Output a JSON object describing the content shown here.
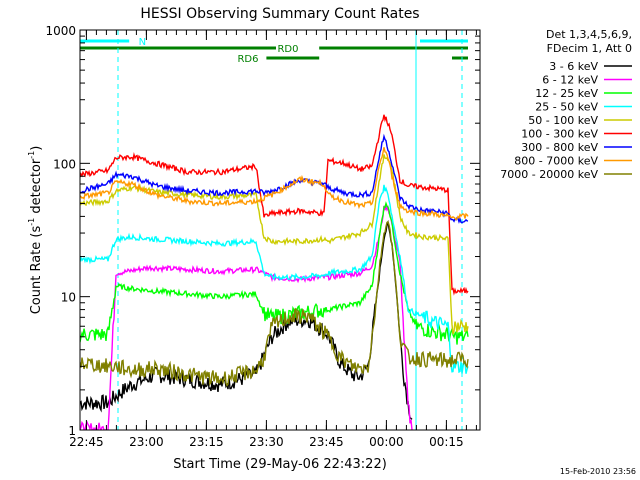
{
  "chart_data": {
    "type": "line",
    "title": "HESSI Observing Summary Count Rates",
    "xlabel": "Start Time (29-May-06 22:43:22)",
    "ylabel_main": "Count Rate (s",
    "ylabel_sup1": "-1",
    "ylabel_mid": " detector",
    "ylabel_sup2": "-1",
    "ylabel_end": ")",
    "footer": "15-Feb-2010 23:56",
    "yscale": "log",
    "ylim": [
      1,
      1000
    ],
    "xlim_min": [
      0,
      100
    ],
    "y_ticks": [
      "1",
      "10",
      "100",
      "1000"
    ],
    "x_ticks": [
      {
        "label": "22:45",
        "t": 1.6
      },
      {
        "label": "23:00",
        "t": 16.6
      },
      {
        "label": "23:15",
        "t": 31.6
      },
      {
        "label": "23:30",
        "t": 46.6
      },
      {
        "label": "23:45",
        "t": 61.6
      },
      {
        "label": "00:00",
        "t": 76.6
      },
      {
        "label": "00:15",
        "t": 91.6
      }
    ],
    "legend_header": [
      "Det 1,3,4,5,6,9,",
      "FDecim 1, Att 0"
    ],
    "legend_placement": "right",
    "series": [
      {
        "name": "3 - 6 keV",
        "color": "#000000",
        "t": [
          0,
          7,
          9,
          13,
          19,
          27,
          35,
          40,
          44,
          48,
          52,
          57,
          62,
          65,
          68,
          70,
          72,
          73,
          74,
          75,
          76,
          77,
          78,
          79,
          80,
          81,
          82,
          83
        ],
        "v": [
          1.6,
          1.6,
          1.8,
          2.2,
          2.6,
          2.4,
          2.2,
          2.4,
          2.6,
          5.0,
          6.5,
          6.8,
          5.2,
          3.2,
          2.6,
          2.5,
          3.0,
          5.0,
          9.0,
          16,
          28,
          35,
          25,
          12,
          5.0,
          2.5,
          1.6,
          1.2
        ]
      },
      {
        "name": "6 - 12 keV",
        "color": "#ff00ff",
        "t": [
          0,
          7,
          9,
          12,
          17,
          27,
          35,
          44,
          46,
          48,
          55,
          61,
          62,
          66,
          70,
          73,
          75,
          76,
          77,
          78,
          80,
          81,
          82,
          83
        ],
        "v": [
          1.0,
          1.0,
          15,
          15.5,
          16.5,
          16,
          15.5,
          16,
          15,
          14,
          13.5,
          14,
          14,
          14.5,
          15,
          17,
          30,
          46,
          47,
          35,
          18,
          5.0,
          1.5,
          1.0
        ]
      },
      {
        "name": "12 - 25 keV",
        "color": "#00ff00",
        "t": [
          0,
          7,
          9,
          13,
          19,
          27,
          35,
          44,
          46,
          48,
          55,
          61,
          62,
          66,
          70,
          73,
          75,
          76,
          77,
          78,
          80,
          82,
          84,
          88,
          92,
          93,
          95,
          97
        ],
        "v": [
          5.2,
          5.2,
          12,
          11.5,
          11,
          10.5,
          10,
          10.5,
          7.5,
          7.0,
          7.5,
          8.0,
          8.0,
          8.5,
          9,
          12,
          30,
          48,
          49,
          35,
          15,
          8,
          6,
          5.5,
          5.2,
          5.0,
          5.0,
          5.0
        ]
      },
      {
        "name": "25 - 50 keV",
        "color": "#00ffff",
        "t": [
          0,
          7,
          9,
          13,
          19,
          27,
          35,
          44,
          46,
          48,
          55,
          61,
          62,
          66,
          70,
          73,
          75,
          76,
          77,
          78,
          80,
          82,
          86,
          88,
          92,
          93,
          95,
          97
        ],
        "v": [
          19,
          19,
          27,
          28,
          27,
          26,
          25,
          26,
          15,
          14,
          14,
          14.5,
          15,
          15.5,
          16,
          20,
          55,
          66,
          60,
          40,
          20,
          8,
          7,
          6.5,
          6,
          3.0,
          3.0,
          3.0
        ]
      },
      {
        "name": "50 - 100 keV",
        "color": "#cccc00",
        "t": [
          0,
          7,
          9,
          13,
          19,
          27,
          35,
          44,
          46,
          48,
          55,
          61,
          62,
          66,
          70,
          73,
          75,
          76,
          77,
          78,
          80,
          82,
          86,
          88,
          92,
          93,
          95,
          97
        ],
        "v": [
          50,
          52,
          62,
          66,
          61,
          58,
          56,
          58,
          28,
          26,
          26,
          27,
          26,
          28,
          30,
          35,
          80,
          112,
          110,
          90,
          40,
          30,
          28,
          28,
          27,
          6.0,
          6.0,
          6.0
        ]
      },
      {
        "name": "100 - 300 keV",
        "color": "#ff0000",
        "t": [
          0,
          7,
          9,
          13,
          19,
          27,
          35,
          44,
          46,
          48,
          55,
          61,
          62,
          66,
          70,
          73,
          75,
          76,
          77,
          78,
          80,
          82,
          86,
          88,
          92,
          93,
          95,
          97
        ],
        "v": [
          82,
          88,
          110,
          112,
          100,
          86,
          86,
          95,
          40,
          42,
          44,
          42,
          105,
          100,
          90,
          95,
          175,
          230,
          200,
          160,
          75,
          68,
          66,
          65,
          63,
          11,
          11,
          11
        ]
      },
      {
        "name": "300 - 800 keV",
        "color": "#0000ff",
        "t": [
          0,
          7,
          9,
          13,
          19,
          27,
          35,
          44,
          46,
          48,
          55,
          61,
          62,
          66,
          70,
          73,
          75,
          76,
          77,
          78,
          80,
          82,
          86,
          88,
          92,
          93,
          95,
          97
        ],
        "v": [
          62,
          70,
          82,
          80,
          68,
          62,
          60,
          62,
          60,
          62,
          75,
          70,
          66,
          60,
          58,
          60,
          120,
          160,
          130,
          100,
          55,
          48,
          44,
          44,
          42,
          38,
          37,
          37
        ]
      },
      {
        "name": "800 - 7000 keV",
        "color": "#ff9900",
        "t": [
          0,
          7,
          9,
          13,
          19,
          27,
          35,
          44,
          46,
          48,
          55,
          61,
          62,
          66,
          70,
          73,
          75,
          76,
          77,
          78,
          80,
          82,
          86,
          88,
          92,
          93,
          95,
          97
        ],
        "v": [
          56,
          60,
          72,
          70,
          58,
          52,
          50,
          52,
          55,
          58,
          76,
          70,
          58,
          52,
          48,
          50,
          100,
          130,
          110,
          80,
          48,
          44,
          42,
          42,
          40,
          39,
          40,
          40
        ]
      },
      {
        "name": "7000 - 20000 keV",
        "color": "#808000",
        "t": [
          0,
          7,
          9,
          13,
          19,
          27,
          35,
          44,
          46,
          48,
          52,
          57,
          62,
          65,
          68,
          70,
          72,
          73,
          74,
          75,
          76,
          77,
          78,
          79,
          80,
          82,
          86,
          92,
          95,
          97
        ],
        "v": [
          3.2,
          3.0,
          3.0,
          2.8,
          2.9,
          2.6,
          2.4,
          2.8,
          3.5,
          6.0,
          7.0,
          7.2,
          5.0,
          3.5,
          3.0,
          2.9,
          3.0,
          5.0,
          9.0,
          18,
          30,
          38,
          25,
          12,
          5.0,
          3.5,
          3.4,
          3.3,
          3.4,
          3.4
        ]
      }
    ],
    "eclipse_markers": [
      {
        "t": 9.5,
        "style": "dashed"
      },
      {
        "t": 84.0,
        "style": "solid"
      },
      {
        "t": 95.5,
        "style": "dashed"
      }
    ],
    "state_bars": [
      {
        "label": "N",
        "color": "#00ffff",
        "segments": [
          [
            0,
            12.3
          ],
          [
            85,
            97
          ]
        ],
        "level": 1,
        "label_t": 15.6
      },
      {
        "label": "RD0",
        "color": "#008000",
        "segments": [
          [
            0,
            49
          ],
          [
            59.8,
            97
          ]
        ],
        "level": 2,
        "label_t": 52
      },
      {
        "label": "RD6",
        "color": "#008000",
        "segments": [
          [
            46.6,
            59.8
          ],
          [
            93,
            97
          ]
        ],
        "level": 3,
        "label_t": 42
      }
    ]
  }
}
